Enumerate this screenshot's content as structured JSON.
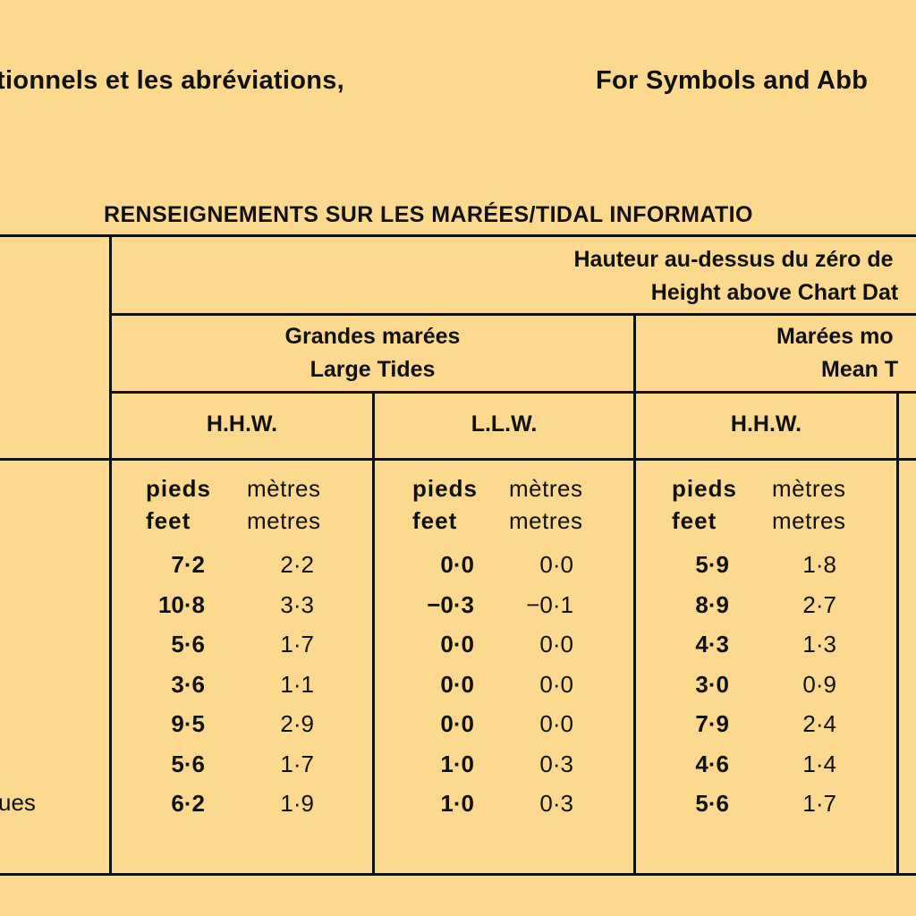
{
  "page": {
    "top_fr": "tionnels et les abréviations,",
    "top_en": "For Symbols and Abb",
    "table_title": "RENSEIGNEMENTS SUR LES MARÉES/TIDAL INFORMATIO",
    "row_label_fragment": "ues"
  },
  "table": {
    "height_header_fr": "Hauteur au-dessus du zéro de",
    "height_header_en": "Height above Chart Dat",
    "large_tides_fr": "Grandes marées",
    "large_tides_en": "Large Tides",
    "mean_tides_fr": "Marées mo",
    "mean_tides_en": "Mean T",
    "hhw_large": "H.H.W.",
    "llw_large": "L.L.W.",
    "hhw_mean": "H.H.W.",
    "units": {
      "feet_fr": "pieds",
      "feet_en": "feet",
      "metres_fr": "mètres",
      "metres_en": "metres"
    },
    "rows": [
      {
        "hhw_ft": "7·2",
        "hhw_m": "2·2",
        "llw_ft": "0·0",
        "llw_m": "0·0",
        "mean_ft": "5·9",
        "mean_m": "1·8"
      },
      {
        "hhw_ft": "10·8",
        "hhw_m": "3·3",
        "llw_ft": "−0·3",
        "llw_m": "−0·1",
        "mean_ft": "8·9",
        "mean_m": "2·7"
      },
      {
        "hhw_ft": "5·6",
        "hhw_m": "1·7",
        "llw_ft": "0·0",
        "llw_m": "0·0",
        "mean_ft": "4·3",
        "mean_m": "1·3"
      },
      {
        "hhw_ft": "3·6",
        "hhw_m": "1·1",
        "llw_ft": "0·0",
        "llw_m": "0·0",
        "mean_ft": "3·0",
        "mean_m": "0·9"
      },
      {
        "hhw_ft": "9·5",
        "hhw_m": "2·9",
        "llw_ft": "0·0",
        "llw_m": "0·0",
        "mean_ft": "7·9",
        "mean_m": "2·4"
      },
      {
        "hhw_ft": "5·6",
        "hhw_m": "1·7",
        "llw_ft": "1·0",
        "llw_m": "0·3",
        "mean_ft": "4·6",
        "mean_m": "1·4"
      },
      {
        "hhw_ft": "6·2",
        "hhw_m": "1·9",
        "llw_ft": "1·0",
        "llw_m": "0·3",
        "mean_ft": "5·6",
        "mean_m": "1·7"
      }
    ]
  }
}
